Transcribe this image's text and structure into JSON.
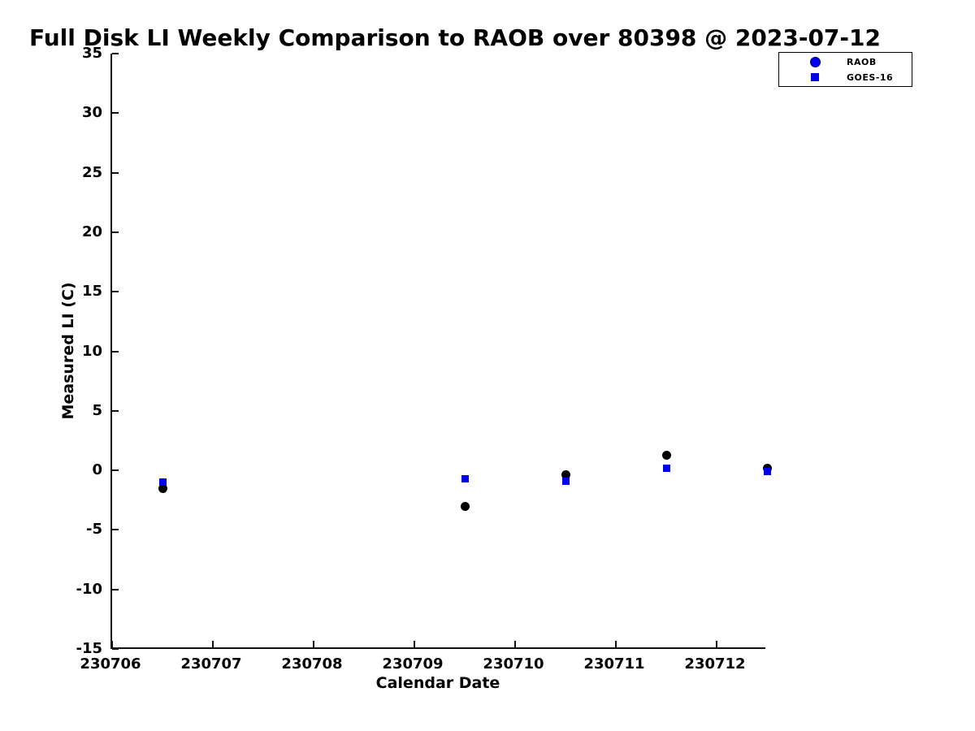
{
  "chart_data": {
    "type": "scatter",
    "title": "Full Disk LI Weekly Comparison to RAOB over 80398 @ 2023-07-12",
    "xlabel": "Calendar Date",
    "ylabel": "Measured LI (C)",
    "xlim": [
      230706,
      230712.5
    ],
    "ylim": [
      -15,
      35
    ],
    "xticks": [
      230706,
      230707,
      230708,
      230709,
      230710,
      230711,
      230712
    ],
    "yticks": [
      35,
      30,
      25,
      20,
      15,
      10,
      5,
      0,
      -5,
      -10,
      -15
    ],
    "grid": false,
    "legend_position": "top-right",
    "x": [
      230706.5,
      230709.5,
      230710.5,
      230711.5,
      230712.5
    ],
    "series": [
      {
        "name": "RAOB",
        "marker": "circle",
        "marker_color": "#000000",
        "legend_marker_color": "#0000EE",
        "values": [
          -1.5,
          -3.0,
          -0.4,
          1.3,
          0.2
        ]
      },
      {
        "name": "GOES-16",
        "marker": "square",
        "marker_color": "#0000EE",
        "legend_marker_color": "#0000EE",
        "values": [
          -1.0,
          -0.7,
          -0.9,
          0.2,
          -0.1
        ]
      }
    ]
  },
  "colors": {
    "marker_blue": "#0000EE",
    "marker_black": "#000000",
    "axis": "#111111",
    "background": "#ffffff"
  }
}
